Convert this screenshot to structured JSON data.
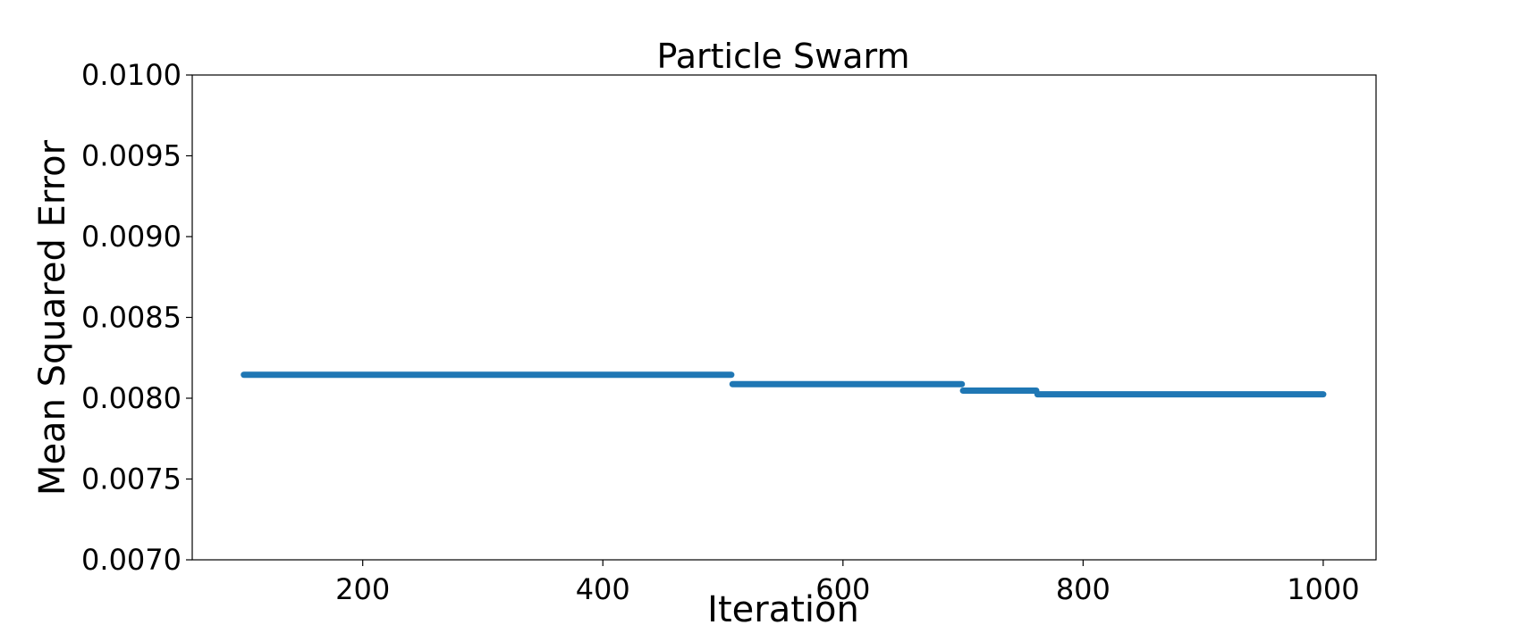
{
  "chart_data": {
    "type": "scatter",
    "title": "Particle Swarm",
    "xlabel": "Iteration",
    "ylabel": "Mean Squared Error",
    "xlim": [
      58,
      1044
    ],
    "ylim": [
      0.007,
      0.01
    ],
    "xticks": [
      200,
      400,
      600,
      800,
      1000
    ],
    "xtick_labels": [
      "200",
      "400",
      "600",
      "800",
      "1000"
    ],
    "yticks": [
      0.007,
      0.0075,
      0.008,
      0.0085,
      0.009,
      0.0095,
      0.01
    ],
    "ytick_labels": [
      "0.0070",
      "0.0075",
      "0.0080",
      "0.0085",
      "0.0090",
      "0.0095",
      "0.0100"
    ],
    "grid": false,
    "series": [
      {
        "color": "#1f77b4",
        "segments": [
          {
            "x_start": 101,
            "x_end": 507,
            "y": 0.008145
          },
          {
            "x_start": 508,
            "x_end": 699,
            "y": 0.008087
          },
          {
            "x_start": 700,
            "x_end": 761,
            "y": 0.008047
          },
          {
            "x_start": 762,
            "x_end": 1000,
            "y": 0.008024
          }
        ]
      }
    ]
  }
}
